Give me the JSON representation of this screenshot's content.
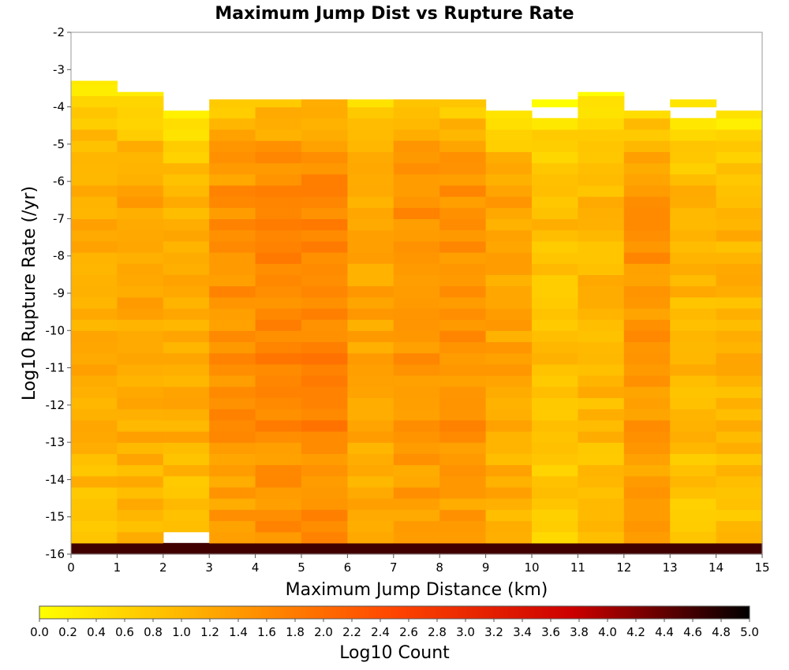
{
  "chart_data": {
    "type": "heatmap",
    "title": "Maximum Jump Dist vs Rupture Rate",
    "xlabel": "Maximum Jump Distance (km)",
    "ylabel": "Log10 Rupture Rate (/yr)",
    "colorbar_label": "Log10 Count",
    "xlim": [
      0,
      15
    ],
    "ylim": [
      -16,
      -2
    ],
    "x_ticks": [
      "0",
      "1",
      "2",
      "3",
      "4",
      "5",
      "6",
      "7",
      "8",
      "9",
      "10",
      "11",
      "12",
      "13",
      "14",
      "15"
    ],
    "y_ticks": [
      "-2",
      "-3",
      "-4",
      "-5",
      "-6",
      "-7",
      "-8",
      "-9",
      "-10",
      "-11",
      "-12",
      "-13",
      "-14",
      "-15",
      "-16"
    ],
    "colorbar_range": [
      0,
      5
    ],
    "colorbar_ticks": [
      "0.0",
      "0.2",
      "0.4",
      "0.6",
      "0.8",
      "1.0",
      "1.2",
      "1.4",
      "1.6",
      "1.8",
      "2.0",
      "2.2",
      "2.4",
      "2.6",
      "2.8",
      "3.0",
      "3.2",
      "3.4",
      "3.6",
      "3.8",
      "4.0",
      "4.2",
      "4.4",
      "4.6",
      "4.8",
      "5.0"
    ],
    "colormap": [
      "#ffff00",
      "#ffa500",
      "#ff4500",
      "#cc0000",
      "#000000"
    ],
    "x_bin_width": 1,
    "y_bin_height": 0.3,
    "y_bin_start": -16,
    "bottom_row_value": 4.6,
    "column_tops": [
      -3.3,
      -3.6,
      -4.1,
      -3.8,
      -3.8,
      -3.8,
      -3.8,
      -3.8,
      -3.8,
      -4.1,
      -3.8,
      -3.6,
      -4.1,
      -3.8,
      -4.1
    ],
    "empty_cells": [
      [
        2,
        -15.6
      ],
      [
        10,
        -4.1
      ],
      [
        13,
        -4.1
      ]
    ],
    "column_levels": [
      0.95,
      1.05,
      0.95,
      1.35,
      1.5,
      1.55,
      1.1,
      1.35,
      1.35,
      1.1,
      0.75,
      0.85,
      1.3,
      0.85,
      0.9
    ]
  }
}
